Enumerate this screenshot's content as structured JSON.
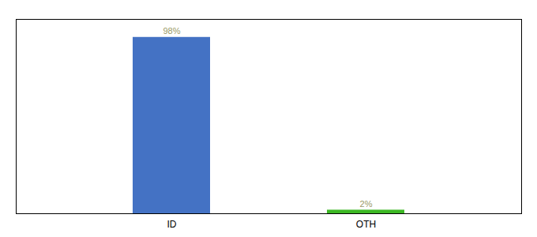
{
  "chart_data": {
    "type": "bar",
    "categories": [
      "ID",
      "OTH"
    ],
    "values": [
      98,
      2
    ],
    "value_labels": [
      "98%",
      "2%"
    ],
    "colors": [
      "#4472C4",
      "#3CB824"
    ],
    "ylim": [
      0,
      108
    ],
    "data_labels": true,
    "tick_labels": "x"
  }
}
